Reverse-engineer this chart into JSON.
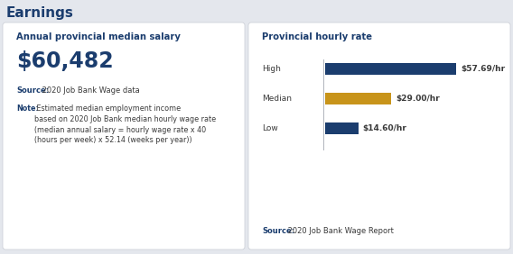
{
  "title": "Earnings",
  "bg_color": "#e4e7ed",
  "card_color": "#ffffff",
  "left_card": {
    "heading": "Annual provincial median salary",
    "salary": "$60,482",
    "source_bold": "Source:",
    "source_text": " 2020 Job Bank Wage data",
    "note_bold": "Note:",
    "note_text": " Estimated median employment income\nbased on 2020 Job Bank median hourly wage rate\n(median annual salary = hourly wage rate x 40\n(hours per week) x 52.14 (weeks per year))"
  },
  "right_card": {
    "heading": "Provincial hourly rate",
    "bars": [
      {
        "label": "High",
        "value": 57.69,
        "label_text": "$57.69/hr",
        "color": "#1b3d6e"
      },
      {
        "label": "Median",
        "value": 29.0,
        "label_text": "$29.00/hr",
        "color": "#c8941a"
      },
      {
        "label": "Low",
        "value": 14.6,
        "label_text": "$14.60/hr",
        "color": "#1b3d6e"
      }
    ],
    "max_value": 57.69,
    "source_bold": "Source:",
    "source_text": " 2020 Job Bank Wage Report"
  },
  "heading_color": "#1b3d6e",
  "text_color": "#3a3a3a",
  "small_text_color": "#3a3a3a",
  "title_fontsize": 11,
  "heading_fontsize": 7.2,
  "salary_fontsize": 17,
  "source_fontsize": 6,
  "note_fontsize": 5.8,
  "bar_label_fontsize": 6.5,
  "bar_value_fontsize": 6.5
}
